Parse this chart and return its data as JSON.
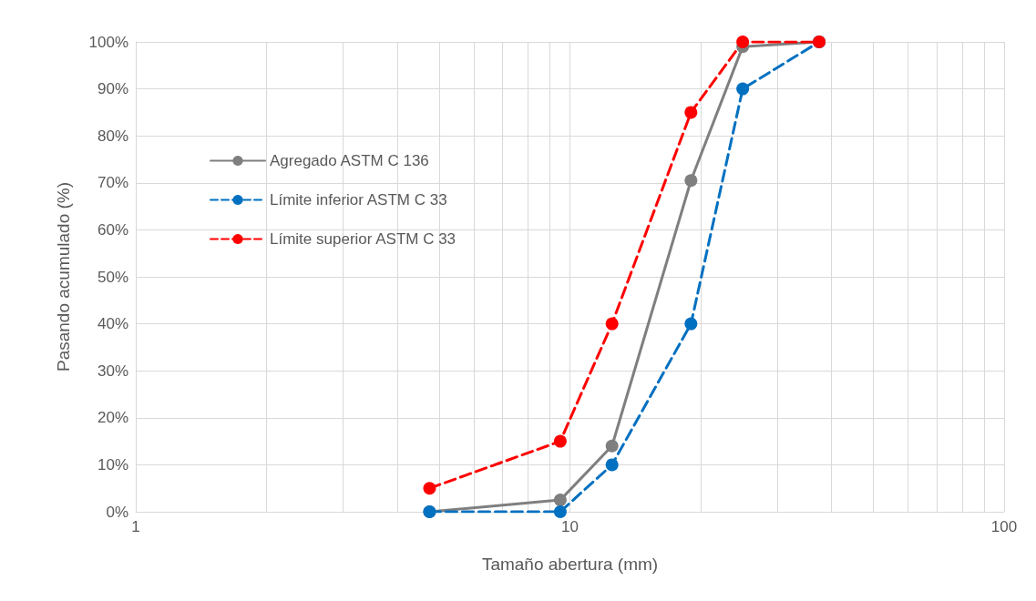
{
  "chart_data": {
    "type": "line",
    "xlabel": "Tamaño abertura (mm)",
    "ylabel": "Pasando acumulado (%)",
    "log": "x",
    "grid": true,
    "legend": "left",
    "marker": "circle",
    "xlim": [
      1,
      100
    ],
    "xticks": [
      1,
      {
        "value": 2,
        "label": null
      },
      {
        "value": 3,
        "label": null
      },
      {
        "value": 4,
        "label": null
      },
      {
        "value": 5,
        "label": null
      },
      {
        "value": 6,
        "label": null
      },
      {
        "value": 7,
        "label": null
      },
      {
        "value": 8,
        "label": null
      },
      {
        "value": 9,
        "label": null
      },
      10,
      {
        "value": 20,
        "label": null
      },
      {
        "value": 30,
        "label": null
      },
      {
        "value": 40,
        "label": null
      },
      {
        "value": 50,
        "label": null
      },
      {
        "value": 60,
        "label": null
      },
      {
        "value": 70,
        "label": null
      },
      {
        "value": 80,
        "label": null
      },
      {
        "value": 90,
        "label": null
      },
      100
    ],
    "ylim": [
      0,
      100
    ],
    "yticks": [
      {
        "value": 0,
        "label": "0%"
      },
      {
        "value": 10,
        "label": "10%"
      },
      {
        "value": 20,
        "label": "20%"
      },
      {
        "value": 30,
        "label": "30%"
      },
      {
        "value": 40,
        "label": "40%"
      },
      {
        "value": 50,
        "label": "50%"
      },
      {
        "value": 60,
        "label": "60%"
      },
      {
        "value": 70,
        "label": "70%"
      },
      {
        "value": 80,
        "label": "80%"
      },
      {
        "value": 90,
        "label": "90%"
      },
      {
        "value": 100,
        "label": "100%"
      }
    ],
    "x": [
      4.75,
      9.5,
      12.5,
      19,
      25,
      37.5
    ],
    "series": [
      {
        "name": "Agregado ASTM C 136",
        "color": "#7f7f7f",
        "line_style": "solid",
        "values": [
          0,
          2.5,
          14,
          70.5,
          99,
          100
        ]
      },
      {
        "name": "Límite inferior ASTM C 33",
        "color": "#0070c0",
        "line_style": "dashed",
        "values": [
          0,
          0,
          10,
          40,
          90,
          100
        ]
      },
      {
        "name": "Límite superior ASTM C 33",
        "color": "#ff0000",
        "line_style": "dashed",
        "values": [
          5,
          15,
          40,
          85,
          100,
          100
        ]
      }
    ]
  }
}
